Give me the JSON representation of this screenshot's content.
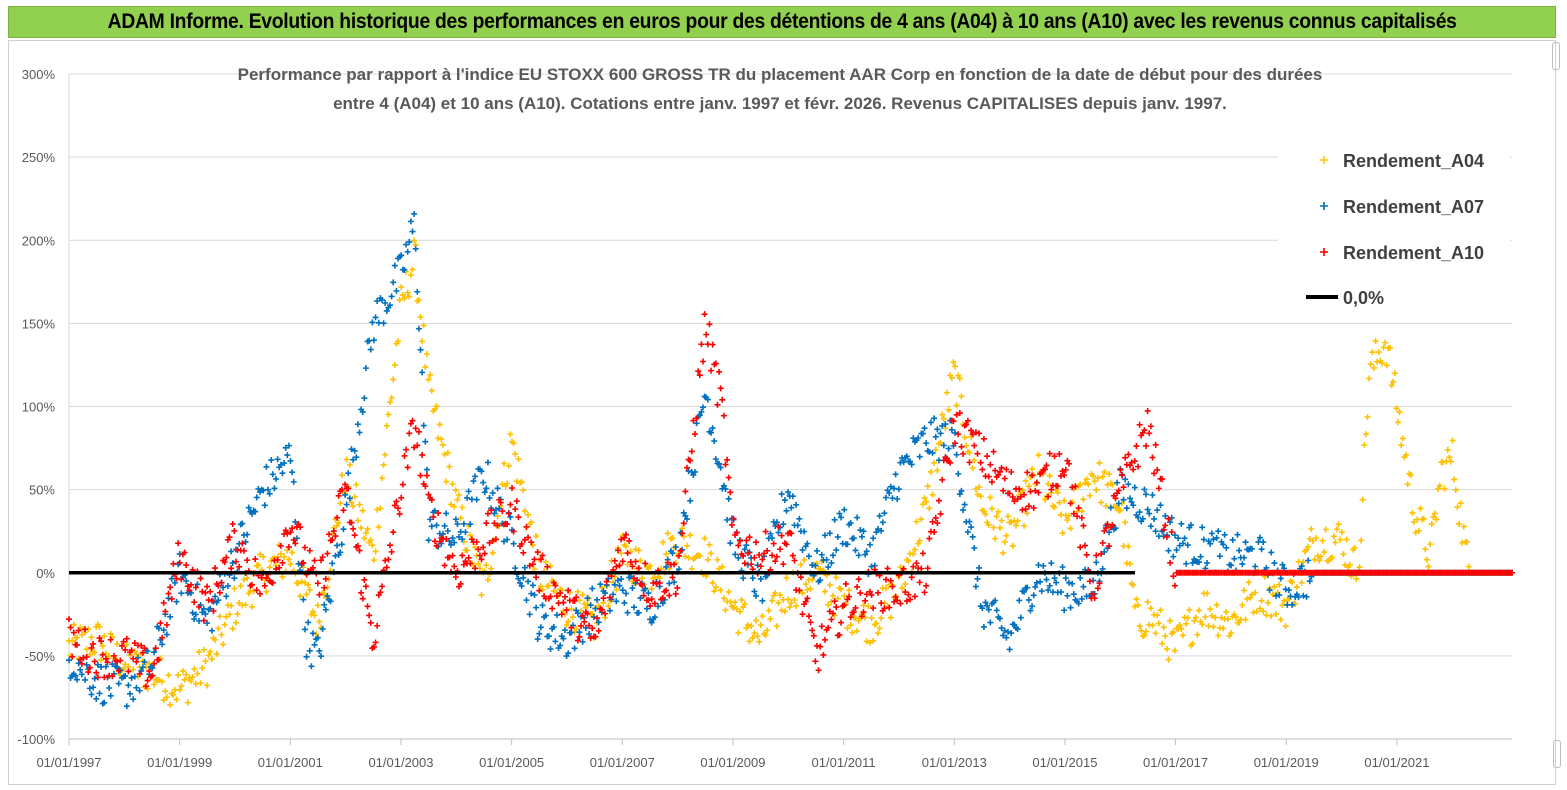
{
  "header": {
    "title": "ADAM Informe. Evolution historique des performances en euros pour des détentions de 4 ans (A04) à 10 ans (A10) avec les revenus connus capitalisés"
  },
  "chart_data": {
    "type": "scatter",
    "title_line1": "Performance par rapport à l'indice EU STOXX 600 GROSS TR  du placement AAR Corp en fonction de la date de début pour des durées",
    "title_line2": "entre 4 (A04) et 10 ans (A10).  Cotations entre janv. 1997 et févr. 2026. Revenus  CAPITALISES depuis janv. 1997.",
    "xlabel": "",
    "ylabel": "",
    "x_range": [
      1997.0,
      2023.08
    ],
    "ylim": [
      -100,
      300
    ],
    "y_ticks": [
      300,
      250,
      200,
      150,
      100,
      50,
      0,
      -50,
      -100
    ],
    "y_tick_labels": [
      "300%",
      "250%",
      "200%",
      "150%",
      "100%",
      "50%",
      "0%",
      "-50%",
      "-100%"
    ],
    "x_ticks": [
      1997,
      1999,
      2001,
      2003,
      2005,
      2007,
      2009,
      2011,
      2013,
      2015,
      2017,
      2019,
      2021
    ],
    "x_tick_labels": [
      "01/01/1997",
      "01/01/1999",
      "01/01/2001",
      "01/01/2003",
      "01/01/2005",
      "01/01/2007",
      "01/01/2009",
      "01/01/2011",
      "01/01/2013",
      "01/01/2015",
      "01/01/2017",
      "01/01/2019",
      "01/01/2021"
    ],
    "legend": [
      {
        "name": "Rendement_A04",
        "color": "#ffc000",
        "marker": "+"
      },
      {
        "name": "Rendement_A07",
        "color": "#0070c0",
        "marker": "+"
      },
      {
        "name": "Rendement_A10",
        "color": "#ff0000",
        "marker": "+"
      },
      {
        "name": "0,0%",
        "color": "#000000",
        "marker": "line"
      }
    ],
    "series": [
      {
        "name": "Rendement_A04",
        "color": "#ffc000",
        "x": [
          1997.0,
          1997.5,
          1998.0,
          1998.5,
          1999.0,
          1999.5,
          2000.0,
          2000.5,
          2001.0,
          2001.5,
          2002.0,
          2002.5,
          2003.0,
          2003.25,
          2003.5,
          2004.0,
          2004.5,
          2005.0,
          2005.5,
          2006.0,
          2006.5,
          2007.0,
          2007.5,
          2008.0,
          2008.5,
          2009.0,
          2009.5,
          2010.0,
          2010.5,
          2011.0,
          2011.5,
          2012.0,
          2012.5,
          2013.0,
          2013.5,
          2014.0,
          2014.5,
          2015.0,
          2015.5,
          2016.0,
          2016.3,
          2016.5,
          2017.0,
          2017.5,
          2018.0,
          2018.5,
          2019.0,
          2019.5,
          2020.0,
          2020.3,
          2020.5,
          2020.8,
          2021.0,
          2021.3,
          2021.6,
          2021.8,
          2022.0,
          2022.3,
          2022.5,
          2022.8,
          2023.08
        ],
        "y": [
          -45,
          -40,
          -55,
          -60,
          -70,
          -55,
          -20,
          0,
          10,
          -30,
          60,
          10,
          160,
          190,
          110,
          40,
          -10,
          80,
          0,
          -20,
          -30,
          10,
          0,
          20,
          10,
          -20,
          -40,
          -10,
          0,
          -20,
          -30,
          -10,
          40,
          120,
          40,
          20,
          60,
          30,
          60,
          40,
          -30,
          -25,
          -45,
          -20,
          -30,
          -10,
          -20,
          20,
          20,
          0,
          120,
          140,
          100,
          40,
          10,
          60,
          70,
          0,
          0,
          0,
          0
        ]
      },
      {
        "name": "Rendement_A07",
        "color": "#0070c0",
        "x": [
          1997.0,
          1997.5,
          1998.0,
          1998.5,
          1999.0,
          1999.5,
          2000.0,
          2000.5,
          2001.0,
          2001.3,
          2001.5,
          2002.0,
          2002.5,
          2003.0,
          2003.25,
          2003.5,
          2004.0,
          2004.5,
          2005.0,
          2005.5,
          2006.0,
          2006.5,
          2007.0,
          2007.5,
          2008.0,
          2008.5,
          2008.8,
          2009.0,
          2009.5,
          2010.0,
          2010.5,
          2011.0,
          2011.5,
          2012.0,
          2012.5,
          2013.0,
          2013.5,
          2014.0,
          2014.5,
          2015.0,
          2015.5,
          2016.0,
          2016.5,
          2017.0,
          2017.5,
          2018.0,
          2018.5,
          2019.0,
          2019.5,
          2020.0,
          2020.5,
          2021.0,
          2021.5,
          2022.0,
          2022.5,
          2023.08
        ],
        "y": [
          -50,
          -65,
          -70,
          -55,
          0,
          -30,
          10,
          50,
          70,
          -40,
          -50,
          40,
          150,
          180,
          210,
          30,
          20,
          60,
          20,
          -30,
          -40,
          -20,
          -10,
          -20,
          10,
          110,
          60,
          20,
          -10,
          50,
          0,
          30,
          10,
          60,
          80,
          80,
          -20,
          -40,
          0,
          -10,
          -10,
          50,
          40,
          20,
          15,
          10,
          10,
          -10,
          0,
          0,
          0,
          0,
          0,
          0,
          0,
          0
        ]
      },
      {
        "name": "Rendement_A10",
        "color": "#ff0000",
        "x": [
          1997.0,
          1997.5,
          1998.0,
          1998.5,
          1999.0,
          1999.5,
          2000.0,
          2000.5,
          2001.0,
          2001.5,
          2002.0,
          2002.5,
          2003.0,
          2003.25,
          2003.5,
          2004.0,
          2004.5,
          2005.0,
          2005.5,
          2006.0,
          2006.5,
          2007.0,
          2007.5,
          2008.0,
          2008.5,
          2008.8,
          2009.0,
          2009.5,
          2010.0,
          2010.5,
          2011.0,
          2011.5,
          2012.0,
          2012.5,
          2013.0,
          2013.5,
          2014.0,
          2014.5,
          2015.0,
          2015.5,
          2016.0,
          2016.5,
          2017.0,
          2017.5,
          2018.0,
          2018.5,
          2019.0,
          2019.5,
          2020.0,
          2020.5,
          2021.0,
          2021.5,
          2022.0,
          2022.5,
          2023.08
        ],
        "y": [
          -40,
          -50,
          -50,
          -60,
          10,
          -20,
          20,
          -10,
          30,
          -10,
          50,
          -40,
          50,
          90,
          40,
          0,
          20,
          40,
          0,
          -20,
          -40,
          20,
          -10,
          0,
          150,
          100,
          20,
          10,
          20,
          -50,
          -20,
          -10,
          -10,
          0,
          90,
          70,
          50,
          50,
          70,
          -10,
          50,
          90,
          0,
          0,
          0,
          0,
          0,
          0,
          0,
          0,
          0,
          0,
          0,
          0,
          0
        ]
      }
    ],
    "reference_line": {
      "name": "0,0%",
      "value": 0
    }
  }
}
